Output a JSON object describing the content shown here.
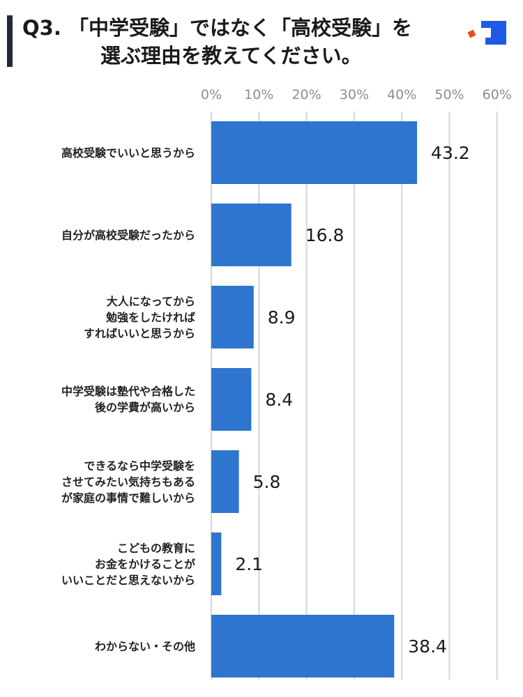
{
  "title": {
    "line1": "Q3. 「中学受験」ではなく「高校受験」を",
    "line2": "選ぶ理由を教えてください。"
  },
  "colors": {
    "bar": "#2e75cf",
    "grid": "#d6d6d6",
    "tick": "#8c8c8c",
    "accent_blue": "#1f57e6",
    "accent_red": "#f04a23",
    "title_bar": "#1f2a3a"
  },
  "icons": {
    "logo": "brand-logo-icon"
  },
  "chart_data": {
    "type": "bar",
    "orientation": "horizontal",
    "title": "Q3. 「中学受験」ではなく「高校受験」を 選ぶ理由を教えてください。",
    "categories": [
      "高校受験でいいと思うから",
      "自分が高校受験だったから",
      "大人になってから\n勉強をしたければ\nすればいいと思うから",
      "中学受験は塾代や合格した\n後の学費が高いから",
      "できるなら中学受験を\nさせてみたい気持ちもある\nが家庭の事情で難しいから",
      "こどもの教育に\nお金をかけることが\nいいことだと思えないから",
      "わからない・その他"
    ],
    "values": [
      43.2,
      16.8,
      8.9,
      8.4,
      5.8,
      2.1,
      38.4
    ],
    "value_labels": [
      "43.2",
      "16.8",
      "8.9",
      "8.4",
      "5.8",
      "2.1",
      "38.4"
    ],
    "x_ticks": [
      "0%",
      "10%",
      "20%",
      "30%",
      "40%",
      "50%",
      "60%"
    ],
    "xlim": [
      0,
      60
    ],
    "grid": true,
    "legend": "none"
  }
}
